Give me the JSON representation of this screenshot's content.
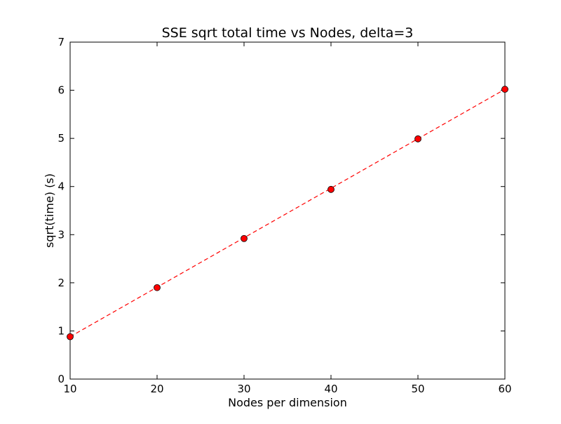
{
  "chart_data": {
    "type": "scatter",
    "title": "SSE sqrt total time vs Nodes, delta=3",
    "xlabel": "Nodes per dimension",
    "ylabel": "sqrt(time) (s)",
    "xlim": [
      10,
      60
    ],
    "ylim": [
      0,
      7
    ],
    "xticks": [
      "10",
      "20",
      "30",
      "40",
      "50",
      "60"
    ],
    "yticks": [
      "0",
      "1",
      "2",
      "3",
      "4",
      "5",
      "6",
      "7"
    ],
    "grid": false,
    "legend": "none",
    "series": [
      {
        "style": "markers",
        "marker_color": "#ff0000",
        "x": [
          10,
          20,
          30,
          40,
          50,
          60
        ],
        "y": [
          0.88,
          1.9,
          2.92,
          3.94,
          4.99,
          6.02
        ]
      }
    ],
    "fit_line": {
      "style": "dashed",
      "color": "#ff0000",
      "x": [
        10,
        60
      ],
      "y": [
        0.88,
        6.02
      ]
    }
  }
}
